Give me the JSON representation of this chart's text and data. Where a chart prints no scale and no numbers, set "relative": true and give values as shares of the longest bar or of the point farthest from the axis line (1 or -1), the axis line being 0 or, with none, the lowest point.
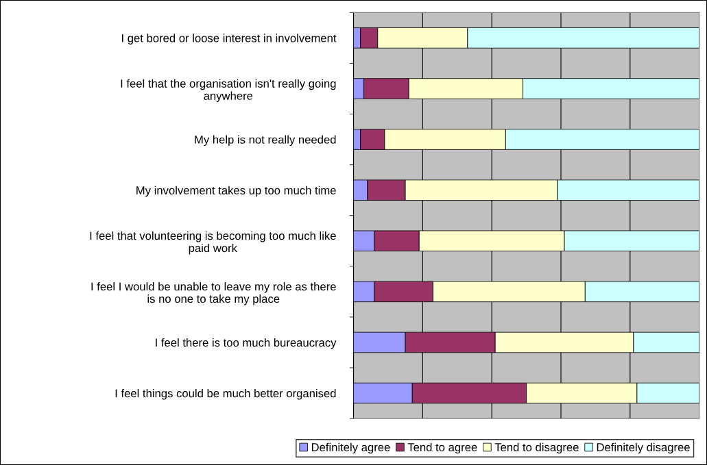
{
  "chart_data": {
    "type": "bar",
    "orientation": "horizontal",
    "stacked": true,
    "relative": true,
    "grid": "x",
    "legend": "bottom",
    "categories": [
      "I get bored or loose interest in involvement",
      "I feel that the organisation isn't really going\nanywhere",
      "My help is not really needed",
      "My involvement takes up too much time",
      "I feel that volunteering is becoming too much like\npaid work",
      "I feel I would be unable to leave my role as there\nis no one to take my place",
      "I feel there is too much bureaucracy",
      "I feel things could be much better organised"
    ],
    "series": [
      {
        "name": "Definitely agree",
        "color": "#9999ff",
        "values": [
          0.02,
          0.03,
          0.02,
          0.04,
          0.06,
          0.06,
          0.15,
          0.17
        ]
      },
      {
        "name": "Tend to agree",
        "color": "#993366",
        "values": [
          0.05,
          0.13,
          0.07,
          0.11,
          0.13,
          0.17,
          0.26,
          0.33
        ]
      },
      {
        "name": "Tend to disagree",
        "color": "#ffffcc",
        "values": [
          0.26,
          0.33,
          0.35,
          0.44,
          0.42,
          0.44,
          0.4,
          0.32
        ]
      },
      {
        "name": "Definitely disagree",
        "color": "#ccffff",
        "values": [
          0.67,
          0.51,
          0.56,
          0.41,
          0.39,
          0.33,
          0.19,
          0.18
        ]
      }
    ]
  }
}
